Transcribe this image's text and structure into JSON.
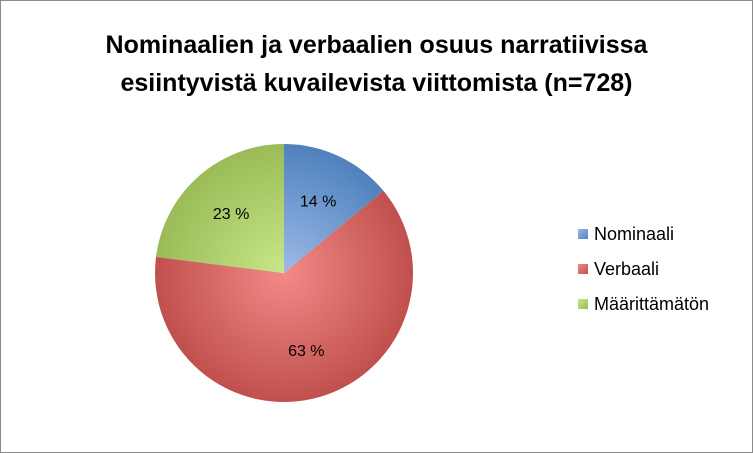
{
  "chart_data": {
    "type": "pie",
    "title": "Nominaalien ja verbaalien osuus narratiivissa esiintyvistä kuvailevista viittomista (n=728)",
    "title_lines": [
      "Nominaalien ja verbaalien osuus narratiivissa",
      "esiintyvistä kuvailevista viittomista (n=728)"
    ],
    "legend_position": "right",
    "slices": [
      {
        "label": "Nominaali",
        "value": 14,
        "display": "14 %",
        "color": "#4f81bd",
        "light": "#9dbbe8"
      },
      {
        "label": "Verbaali",
        "value": 63,
        "display": "63 %",
        "color": "#c0504d",
        "light": "#f28a88"
      },
      {
        "label": "Määrittämätön",
        "value": 23,
        "display": "23 %",
        "color": "#9bbb59",
        "light": "#c8e887"
      }
    ]
  }
}
